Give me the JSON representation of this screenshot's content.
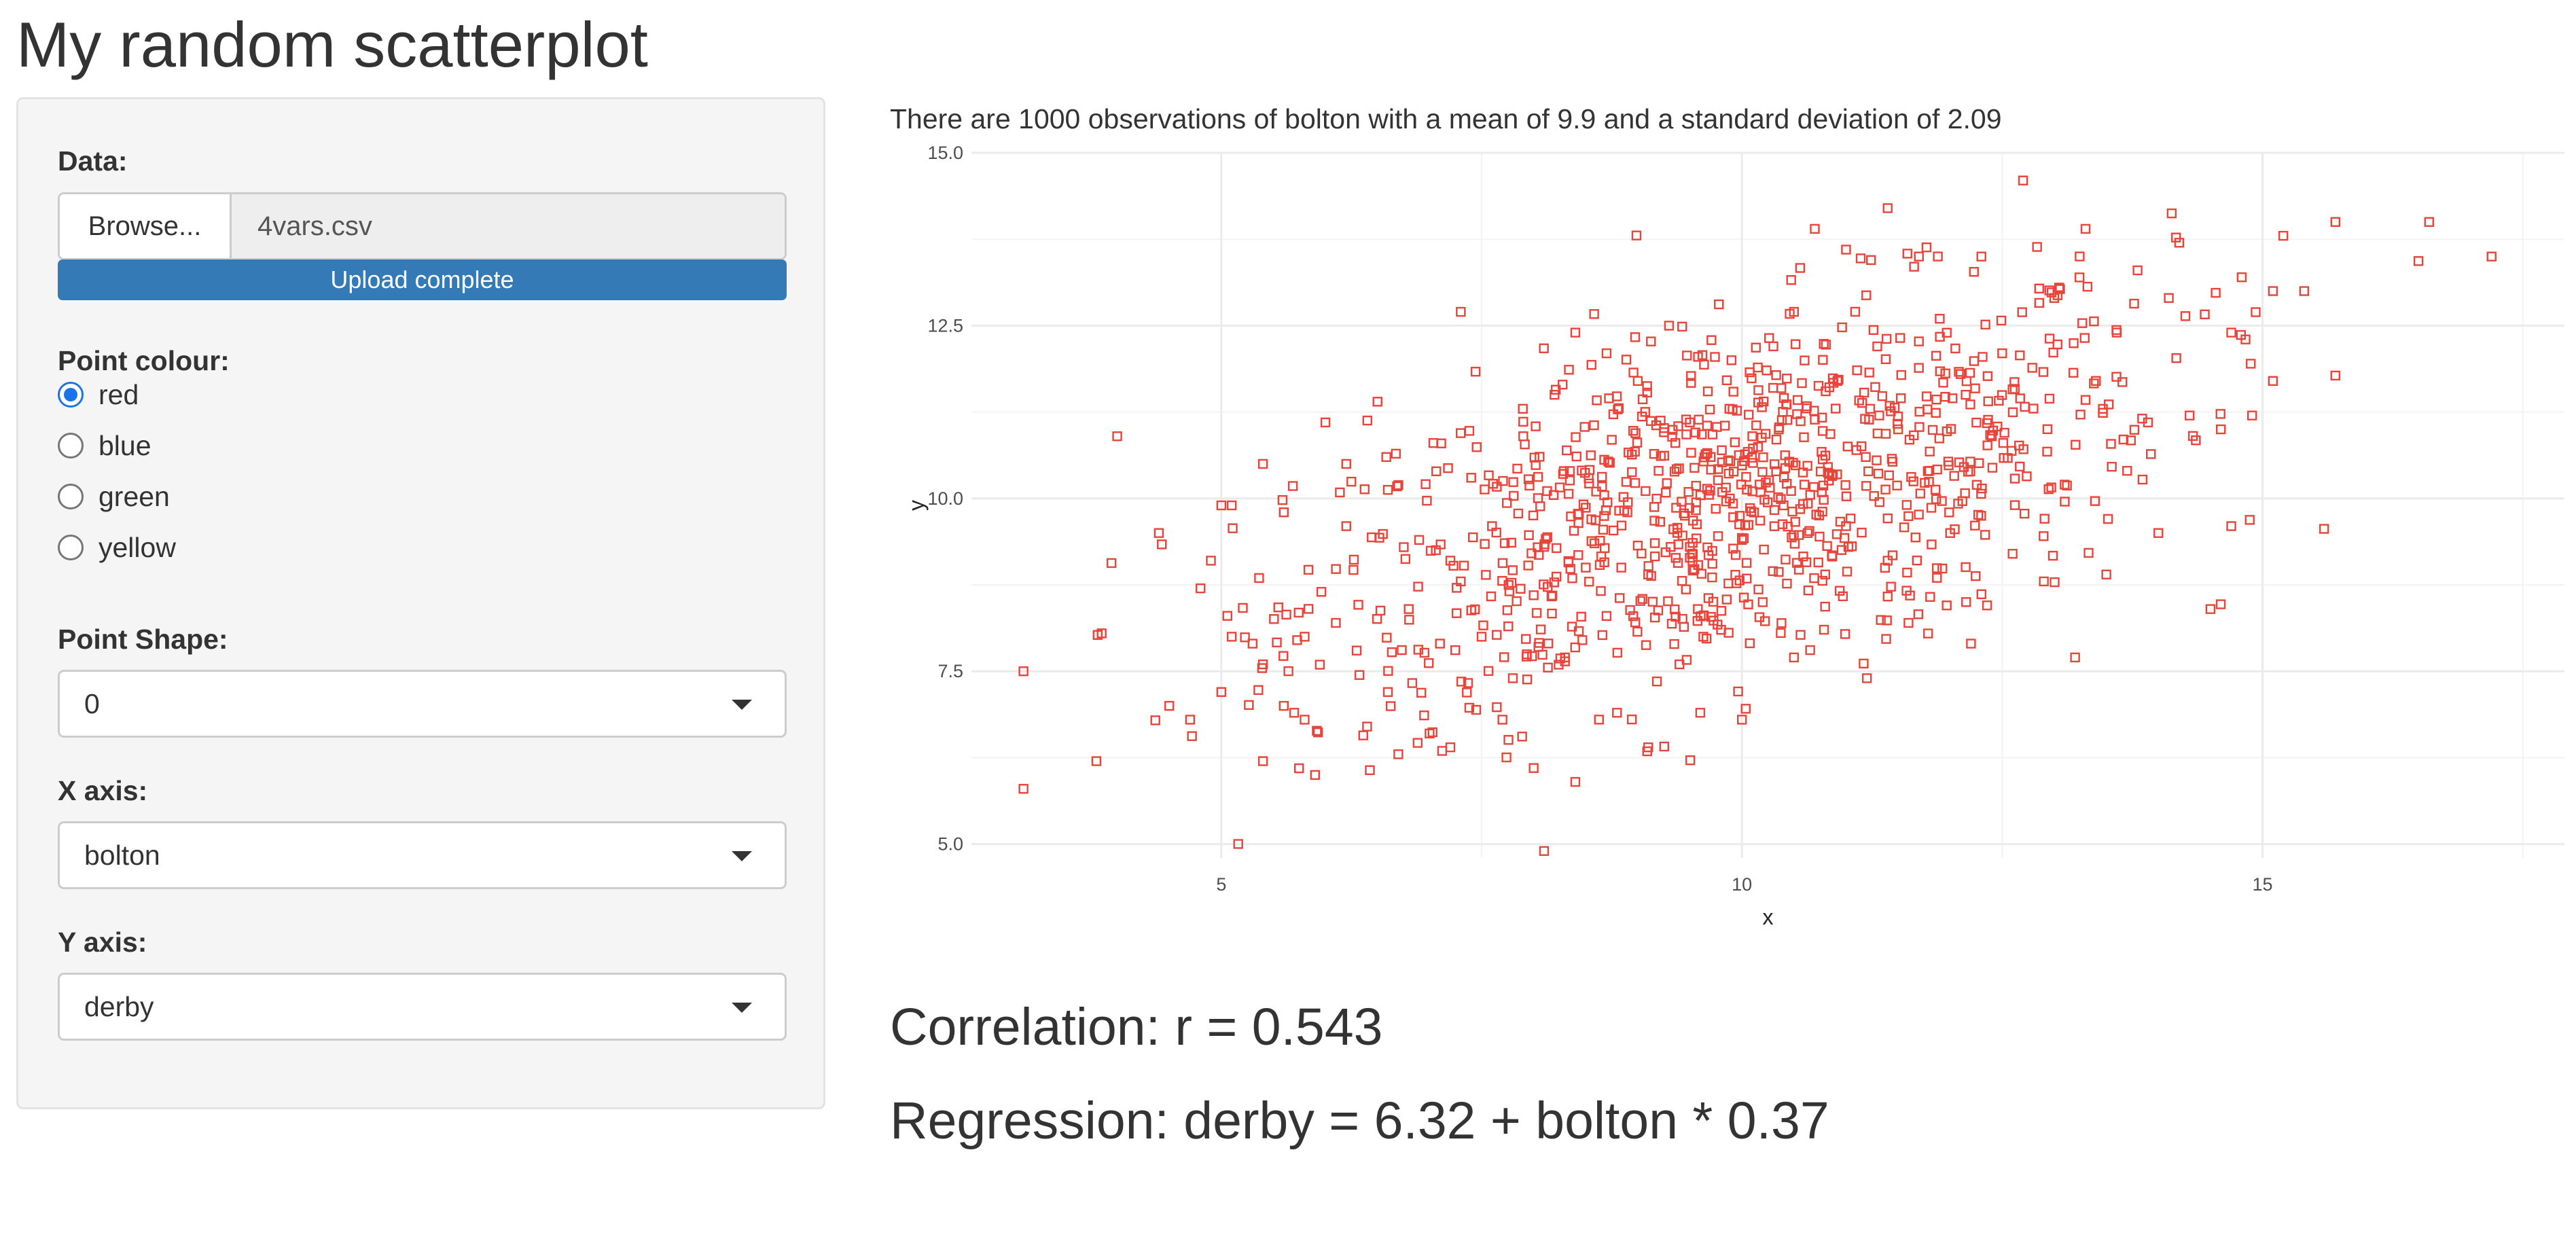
{
  "page": {
    "title": "My random scatterplot"
  },
  "sidebar": {
    "data_label": "Data:",
    "browse_label": "Browse...",
    "file_name": "4vars.csv",
    "upload_status": "Upload complete",
    "upload_progress": 1.0,
    "point_colour_label": "Point colour:",
    "colour_options": [
      {
        "label": "red",
        "checked": true
      },
      {
        "label": "blue",
        "checked": false
      },
      {
        "label": "green",
        "checked": false
      },
      {
        "label": "yellow",
        "checked": false
      }
    ],
    "point_shape_label": "Point Shape:",
    "point_shape_value": "0",
    "x_axis_label": "X axis:",
    "x_axis_value": "bolton",
    "y_axis_label": "Y axis:",
    "y_axis_value": "derby"
  },
  "main": {
    "summary": "There are 1000 observations of bolton with a mean of 9.9 and a standard deviation of 2.09",
    "correlation": "Correlation: r = 0.543",
    "regression": "Regression: derby = 6.32 + bolton * 0.37"
  },
  "colors": {
    "accent": "#337ab7",
    "radio_checked": "#1a73e8",
    "point": "#e8443a",
    "grid": "#ebebeb"
  },
  "chart_data": {
    "type": "scatter",
    "title": "",
    "xlabel": "x",
    "ylabel": "y",
    "xlim": [
      2.6,
      17.9
    ],
    "ylim": [
      4.8,
      15.0
    ],
    "x_ticks": [
      5,
      10,
      15
    ],
    "x_tick_labels": [
      "5",
      "10",
      "15"
    ],
    "y_ticks": [
      5,
      7.5,
      10,
      12.5,
      15
    ],
    "y_tick_labels": [
      "5.0",
      "7.5",
      "10.0",
      "12.5",
      "15.0"
    ],
    "grid": true,
    "marker": "open-square",
    "color": "#e8443a",
    "n_points": 1000,
    "x_mean": 9.9,
    "x_sd": 2.09,
    "regression": {
      "intercept": 6.32,
      "slope": 0.37
    },
    "correlation": 0.543,
    "points": [
      [
        3.1,
        7.5
      ],
      [
        3.1,
        5.8
      ],
      [
        3.8,
        6.2
      ],
      [
        4.0,
        10.9
      ],
      [
        4.4,
        9.5
      ],
      [
        4.5,
        7.0
      ],
      [
        4.7,
        6.8
      ],
      [
        4.8,
        8.7
      ],
      [
        4.9,
        9.1
      ],
      [
        5.0,
        9.9
      ],
      [
        5.0,
        7.2
      ],
      [
        5.1,
        8.0
      ],
      [
        5.1,
        9.9
      ],
      [
        5.3,
        7.9
      ],
      [
        5.4,
        7.6
      ],
      [
        5.4,
        6.2
      ],
      [
        5.4,
        10.5
      ],
      [
        5.6,
        9.8
      ],
      [
        5.6,
        7.0
      ],
      [
        5.7,
        6.9
      ],
      [
        5.8,
        8.0
      ],
      [
        5.8,
        6.8
      ],
      [
        6.0,
        11.1
      ],
      [
        5.9,
        6.0
      ],
      [
        6.1,
        8.2
      ],
      [
        6.2,
        9.6
      ],
      [
        6.2,
        10.5
      ],
      [
        6.3,
        7.8
      ],
      [
        6.4,
        6.7
      ],
      [
        6.5,
        11.4
      ],
      [
        6.6,
        7.2
      ],
      [
        6.7,
        6.3
      ],
      [
        6.8,
        8.4
      ],
      [
        6.9,
        9.4
      ],
      [
        7.0,
        6.6
      ],
      [
        7.1,
        7.9
      ],
      [
        7.2,
        6.4
      ],
      [
        7.2,
        9.1
      ],
      [
        7.3,
        12.7
      ],
      [
        7.3,
        8.8
      ],
      [
        7.4,
        10.3
      ],
      [
        7.5,
        8.0
      ],
      [
        7.6,
        9.6
      ],
      [
        7.7,
        6.8
      ],
      [
        7.8,
        7.4
      ],
      [
        7.9,
        10.9
      ],
      [
        8.0,
        6.1
      ],
      [
        8.0,
        8.6
      ],
      [
        8.1,
        9.3
      ],
      [
        8.1,
        4.9
      ],
      [
        8.2,
        11.5
      ],
      [
        8.3,
        7.7
      ],
      [
        8.4,
        12.4
      ],
      [
        8.4,
        5.9
      ],
      [
        8.5,
        9.0
      ],
      [
        8.6,
        10.1
      ],
      [
        8.7,
        8.3
      ],
      [
        8.7,
        12.1
      ],
      [
        8.8,
        6.9
      ],
      [
        8.9,
        9.8
      ],
      [
        9.0,
        11.7
      ],
      [
        9.1,
        6.4
      ],
      [
        9.1,
        8.9
      ],
      [
        9.2,
        10.4
      ],
      [
        9.3,
        12.5
      ],
      [
        9.4,
        7.6
      ],
      [
        9.5,
        9.3
      ],
      [
        9.5,
        11.1
      ],
      [
        9.6,
        6.9
      ],
      [
        9.7,
        10.6
      ],
      [
        9.8,
        8.1
      ],
      [
        9.9,
        12.0
      ],
      [
        10.0,
        9.4
      ],
      [
        10.0,
        6.8
      ],
      [
        10.1,
        10.9
      ],
      [
        10.2,
        8.5
      ],
      [
        10.3,
        11.6
      ],
      [
        10.4,
        9.9
      ],
      [
        10.5,
        12.7
      ],
      [
        10.5,
        7.7
      ],
      [
        10.6,
        10.2
      ],
      [
        10.7,
        13.9
      ],
      [
        10.8,
        8.9
      ],
      [
        10.9,
        11.3
      ],
      [
        11.0,
        9.6
      ],
      [
        11.0,
        13.6
      ],
      [
        11.1,
        10.7
      ],
      [
        11.2,
        7.4
      ],
      [
        11.3,
        12.2
      ],
      [
        11.4,
        9.1
      ],
      [
        11.4,
        14.2
      ],
      [
        11.5,
        11.0
      ],
      [
        11.6,
        8.2
      ],
      [
        11.7,
        13.5
      ],
      [
        11.8,
        10.4
      ],
      [
        11.9,
        12.6
      ],
      [
        12.0,
        9.5
      ],
      [
        12.1,
        11.8
      ],
      [
        12.2,
        7.9
      ],
      [
        12.3,
        13.5
      ],
      [
        12.4,
        10.9
      ],
      [
        12.5,
        12.1
      ],
      [
        12.6,
        9.2
      ],
      [
        12.7,
        14.6
      ],
      [
        12.8,
        11.3
      ],
      [
        12.9,
        8.8
      ],
      [
        13.0,
        12.9
      ],
      [
        13.1,
        10.2
      ],
      [
        13.2,
        7.7
      ],
      [
        13.3,
        13.9
      ],
      [
        13.4,
        11.7
      ],
      [
        13.5,
        8.9
      ],
      [
        13.6,
        12.4
      ],
      [
        13.7,
        10.4
      ],
      [
        13.8,
        13.3
      ],
      [
        13.9,
        11.1
      ],
      [
        14.0,
        9.5
      ],
      [
        14.1,
        12.9
      ],
      [
        14.2,
        13.7
      ],
      [
        14.3,
        11.2
      ],
      [
        14.5,
        8.4
      ],
      [
        14.6,
        11.0
      ],
      [
        14.7,
        9.6
      ],
      [
        14.7,
        12.4
      ],
      [
        14.8,
        13.2
      ],
      [
        14.9,
        11.2
      ],
      [
        15.1,
        13.0
      ],
      [
        15.1,
        11.7
      ],
      [
        15.2,
        13.8
      ],
      [
        15.4,
        13.0
      ],
      [
        15.7,
        14.0
      ],
      [
        16.6,
        14.0
      ],
      [
        17.2,
        13.5
      ]
    ]
  }
}
